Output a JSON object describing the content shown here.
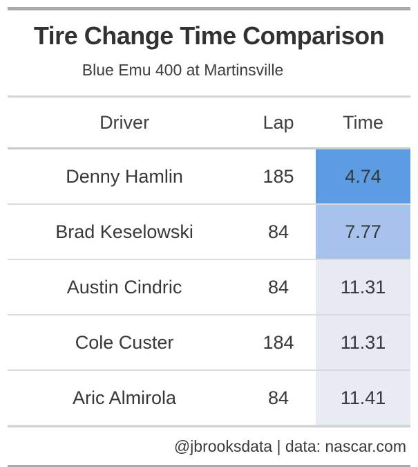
{
  "header": {
    "title": "Tire Change Time Comparison",
    "subtitle": "Blue Emu 400 at Martinsville"
  },
  "table": {
    "columns": [
      "Driver",
      "Lap",
      "Time"
    ],
    "rows": [
      {
        "driver": "Denny Hamlin",
        "lap": "185",
        "time": "4.74",
        "time_bg": "#5b9ce3"
      },
      {
        "driver": "Brad Keselowski",
        "lap": "84",
        "time": "7.77",
        "time_bg": "#a7c3ed"
      },
      {
        "driver": "Austin Cindric",
        "lap": "84",
        "time": "11.31",
        "time_bg": "#e7eaf3"
      },
      {
        "driver": "Cole Custer",
        "lap": "184",
        "time": "11.31",
        "time_bg": "#e7eaf3"
      },
      {
        "driver": "Aric Almirola",
        "lap": "84",
        "time": "11.41",
        "time_bg": "#e9ebf4"
      }
    ]
  },
  "footer": {
    "source_note": "@jbrooksdata | data: nascar.com"
  },
  "colors": {
    "time_fastest": "#5b9ce3",
    "time_mid": "#a7c3ed",
    "time_slow": "#e7eaf3",
    "time_slowest": "#e9ebf4",
    "frame_bar_gray": "#a9a9a9",
    "separator_gray": "#dadada"
  },
  "chart_data": {
    "type": "table",
    "title": "Tire Change Time Comparison",
    "subtitle": "Blue Emu 400 at Martinsville",
    "columns": [
      "Driver",
      "Lap",
      "Time"
    ],
    "rows": [
      [
        "Denny Hamlin",
        185,
        4.74
      ],
      [
        "Brad Keselowski",
        84,
        7.77
      ],
      [
        "Austin Cindric",
        84,
        11.31
      ],
      [
        "Cole Custer",
        184,
        11.31
      ],
      [
        "Aric Almirola",
        84,
        11.41
      ]
    ],
    "source": "@jbrooksdata | data: nascar.com",
    "layout_hints": "Time column cells shaded on a blue gradient: fastest time = saturated blue, slowest = pale lavender; all cells center-aligned; gray frame bars at very top and bottom"
  }
}
